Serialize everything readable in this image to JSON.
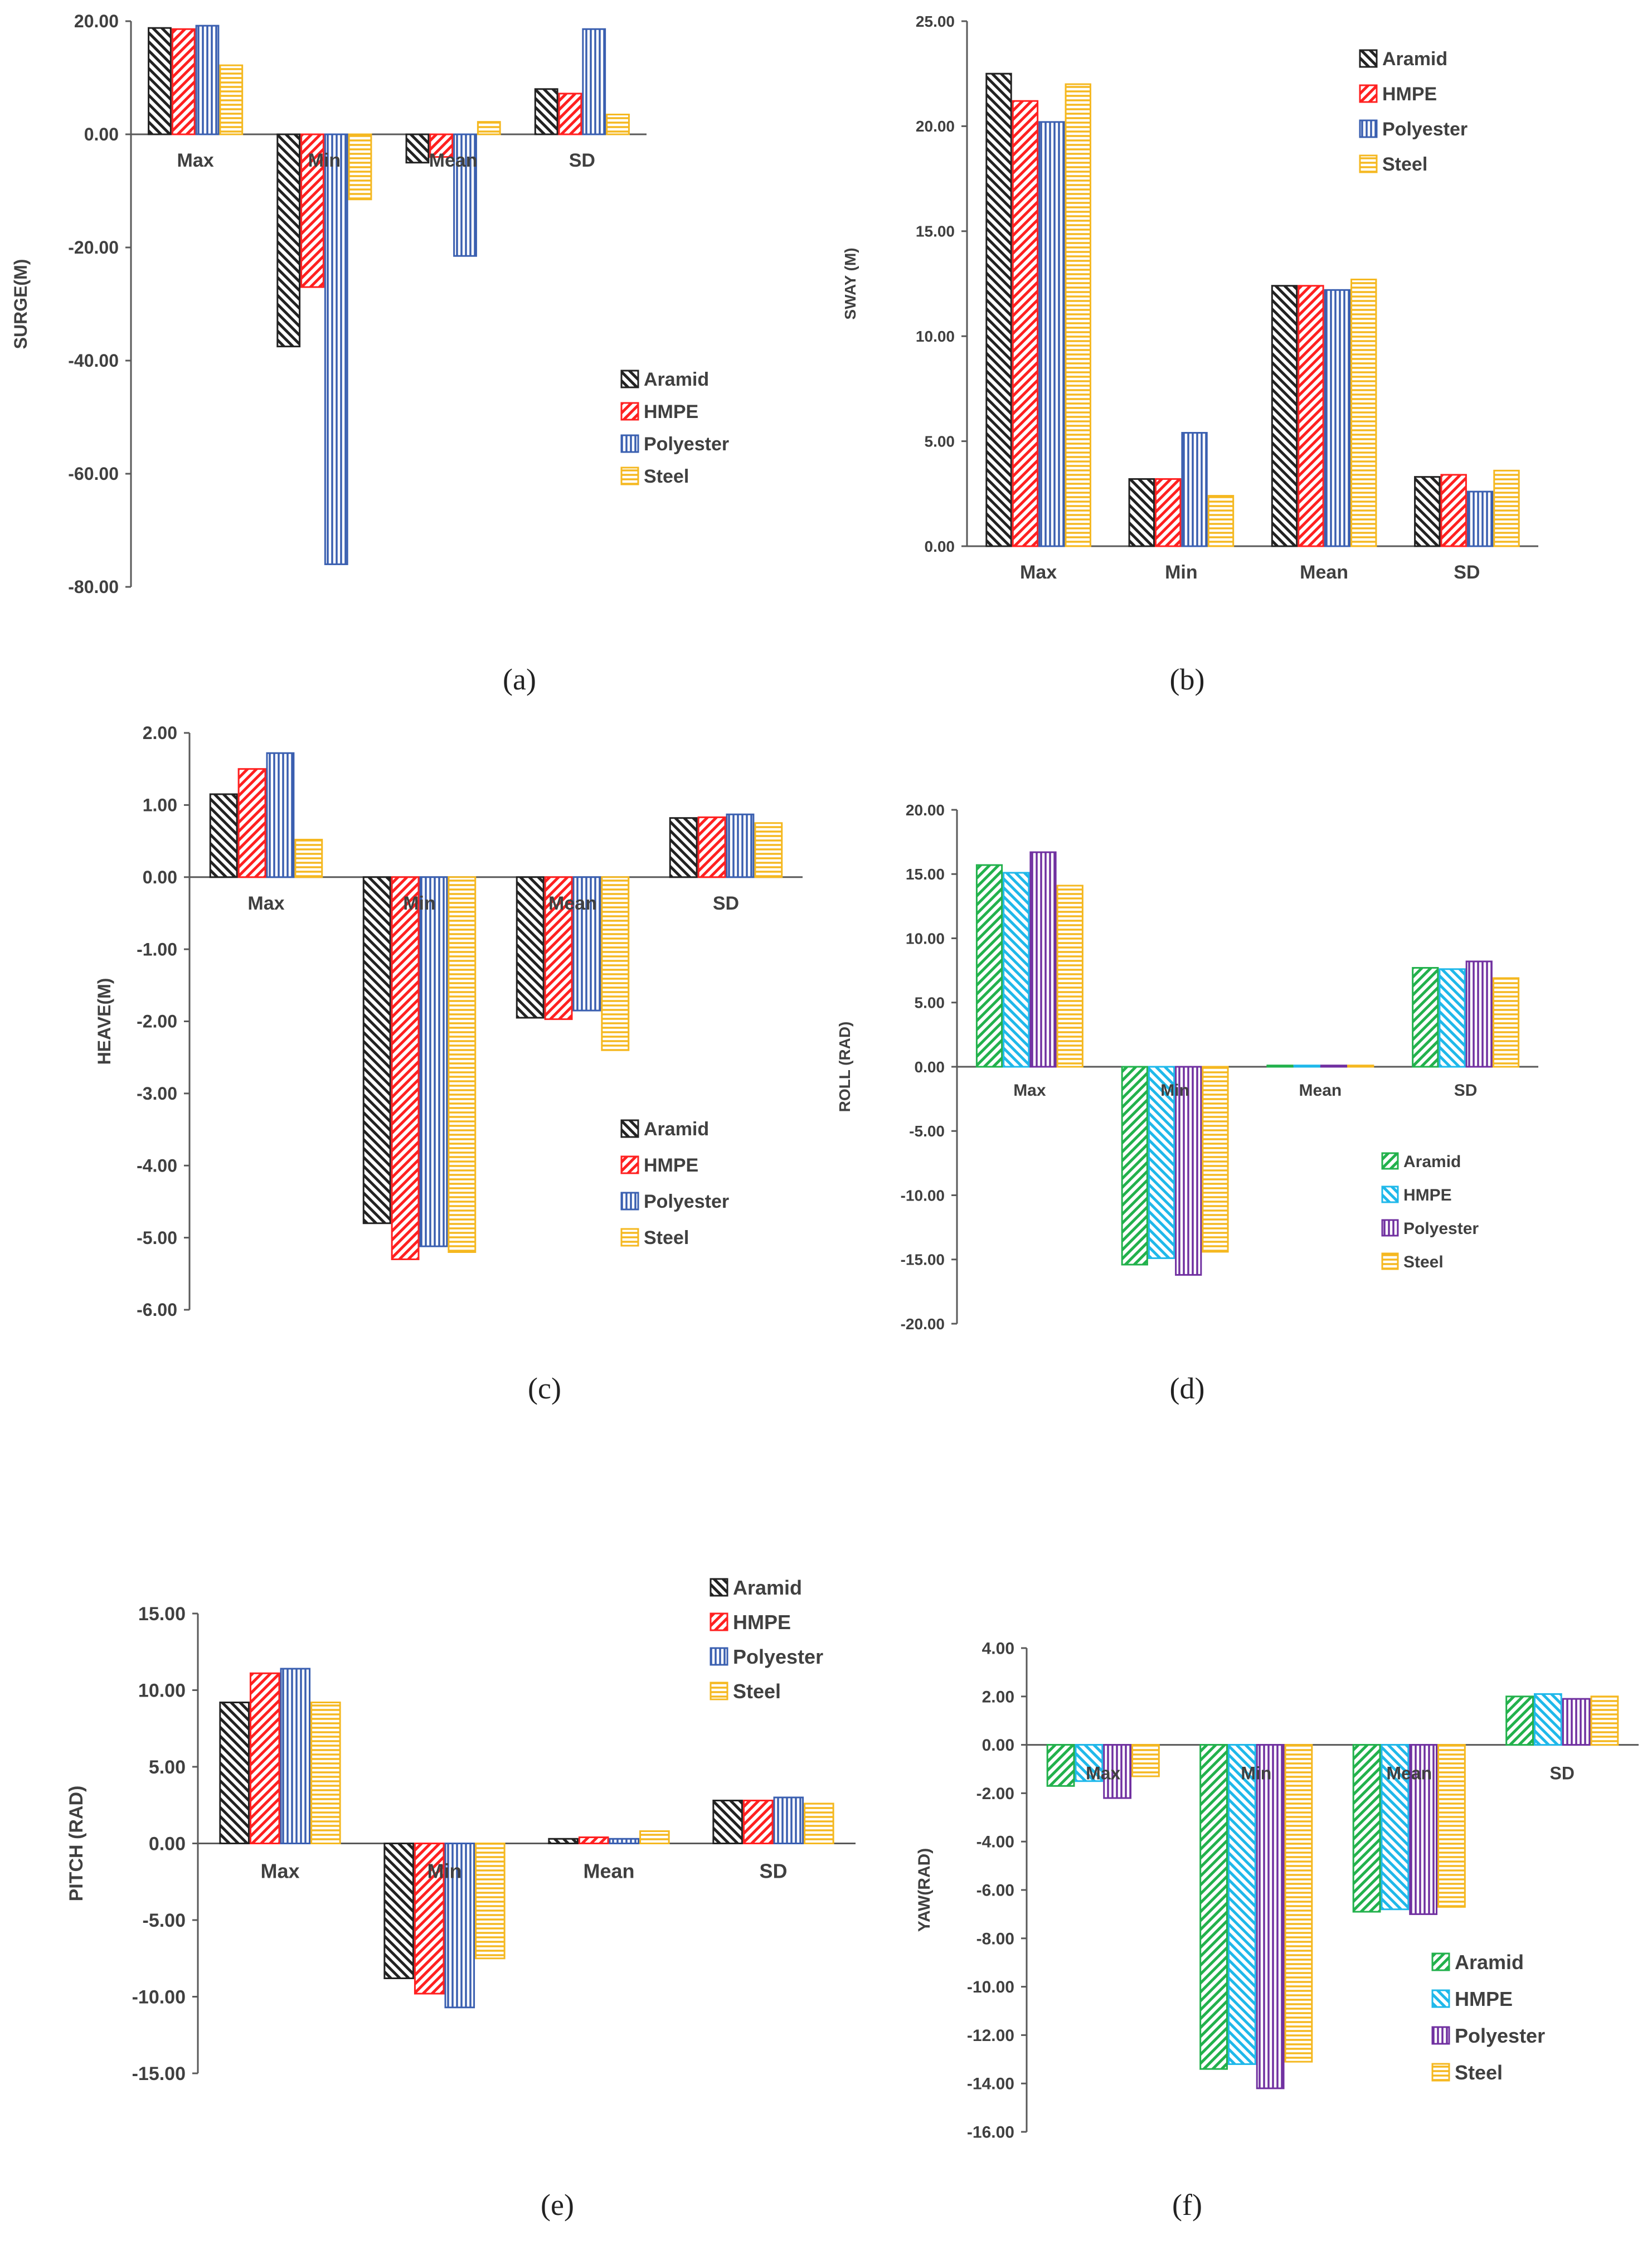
{
  "colors": {
    "scheme_a": {
      "Aramid": "#222222",
      "HMPE": "#ff2020",
      "Polyester": "#3a5fb0",
      "Steel": "#f5b820"
    },
    "scheme_b": {
      "Aramid": "#22b14c",
      "HMPE": "#1fb8ea",
      "Polyester": "#7030a0",
      "Steel": "#f5b820"
    }
  },
  "captions": [
    "(a)",
    "(b)",
    "(c)",
    "(d)",
    "(e)",
    "(f)"
  ],
  "chart_data": [
    {
      "id": "a",
      "type": "bar",
      "ylabel": "SURGE(M)",
      "title": "",
      "xlabel": "",
      "ylim": [
        -80,
        20
      ],
      "yticks": [
        "20.00",
        "0.00",
        "-20.00",
        "-40.00",
        "-60.00",
        "-80.00"
      ],
      "categories": [
        "Max",
        "Min",
        "Mean",
        "SD"
      ],
      "color_scheme": "scheme_a",
      "legend_position": "center-right",
      "grid": false,
      "series": [
        {
          "name": "Aramid",
          "pattern": "diag-back",
          "values": [
            18.8,
            -37.5,
            -5.0,
            8.0
          ]
        },
        {
          "name": "HMPE",
          "pattern": "diag-fwd",
          "values": [
            18.6,
            -27.0,
            -4.0,
            7.2
          ]
        },
        {
          "name": "Polyester",
          "pattern": "vertical",
          "values": [
            19.2,
            -76.0,
            -21.5,
            18.6
          ]
        },
        {
          "name": "Steel",
          "pattern": "horizontal",
          "values": [
            12.2,
            -11.5,
            2.2,
            3.5
          ]
        }
      ]
    },
    {
      "id": "b",
      "type": "bar",
      "ylabel": "SWAY (M)",
      "title": "",
      "xlabel": "",
      "ylim": [
        0,
        25
      ],
      "yticks": [
        "25.00",
        "20.00",
        "15.00",
        "10.00",
        "5.00",
        "0.00"
      ],
      "categories": [
        "Max",
        "Min",
        "Mean",
        "SD"
      ],
      "color_scheme": "scheme_a",
      "legend_position": "top-right",
      "grid": false,
      "series": [
        {
          "name": "Aramid",
          "pattern": "diag-back",
          "values": [
            22.5,
            3.2,
            12.4,
            3.3
          ]
        },
        {
          "name": "HMPE",
          "pattern": "diag-fwd",
          "values": [
            21.2,
            3.2,
            12.4,
            3.4
          ]
        },
        {
          "name": "Polyester",
          "pattern": "vertical",
          "values": [
            20.2,
            5.4,
            12.2,
            2.6
          ]
        },
        {
          "name": "Steel",
          "pattern": "horizontal",
          "values": [
            22.0,
            2.4,
            12.7,
            3.6
          ]
        }
      ]
    },
    {
      "id": "c",
      "type": "bar",
      "ylabel": "HEAVE(M)",
      "title": "",
      "xlabel": "",
      "ylim": [
        -6,
        2
      ],
      "yticks": [
        "2.00",
        "1.00",
        "0.00",
        "-1.00",
        "-2.00",
        "-3.00",
        "-4.00",
        "-5.00",
        "-6.00"
      ],
      "categories": [
        "Max",
        "Min",
        "Mean",
        "SD"
      ],
      "color_scheme": "scheme_a",
      "legend_position": "center-right",
      "grid": false,
      "series": [
        {
          "name": "Aramid",
          "pattern": "diag-back",
          "values": [
            1.15,
            -4.8,
            -1.95,
            0.82
          ]
        },
        {
          "name": "HMPE",
          "pattern": "diag-fwd",
          "values": [
            1.5,
            -5.3,
            -1.97,
            0.83
          ]
        },
        {
          "name": "Polyester",
          "pattern": "vertical",
          "values": [
            1.72,
            -5.12,
            -1.85,
            0.87
          ]
        },
        {
          "name": "Steel",
          "pattern": "horizontal",
          "values": [
            0.52,
            -5.2,
            -2.4,
            0.75
          ]
        }
      ]
    },
    {
      "id": "d",
      "type": "bar",
      "ylabel": "ROLL (RAD)",
      "title": "",
      "xlabel": "",
      "ylim": [
        -20,
        20
      ],
      "yticks": [
        "20.00",
        "15.00",
        "10.00",
        "5.00",
        "0.00",
        "-5.00",
        "-10.00",
        "-15.00",
        "-20.00"
      ],
      "categories": [
        "Max",
        "Min",
        "Mean",
        "SD"
      ],
      "color_scheme": "scheme_b",
      "legend_position": "bottom-right",
      "grid": false,
      "series": [
        {
          "name": "Aramid",
          "pattern": "diag-fwd",
          "values": [
            15.7,
            -15.4,
            0.1,
            7.7
          ]
        },
        {
          "name": "HMPE",
          "pattern": "diag-back",
          "values": [
            15.1,
            -14.9,
            0.1,
            7.6
          ]
        },
        {
          "name": "Polyester",
          "pattern": "vertical",
          "values": [
            16.7,
            -16.2,
            0.1,
            8.2
          ]
        },
        {
          "name": "Steel",
          "pattern": "horizontal",
          "values": [
            14.1,
            -14.4,
            0.1,
            6.9
          ]
        }
      ]
    },
    {
      "id": "e",
      "type": "bar",
      "ylabel": "PITCH (RAD)",
      "title": "",
      "xlabel": "",
      "ylim": [
        -15,
        15
      ],
      "yticks": [
        "15.00",
        "10.00",
        "5.00",
        "0.00",
        "-5.00",
        "-10.00",
        "-15.00"
      ],
      "categories": [
        "Max",
        "Min",
        "Mean",
        "SD"
      ],
      "color_scheme": "scheme_a",
      "legend_position": "top-right",
      "grid": false,
      "series": [
        {
          "name": "Aramid",
          "pattern": "diag-back",
          "values": [
            9.2,
            -8.8,
            0.3,
            2.8
          ]
        },
        {
          "name": "HMPE",
          "pattern": "diag-fwd",
          "values": [
            11.1,
            -9.8,
            0.4,
            2.8
          ]
        },
        {
          "name": "Polyester",
          "pattern": "vertical",
          "values": [
            11.4,
            -10.7,
            0.3,
            3.0
          ]
        },
        {
          "name": "Steel",
          "pattern": "horizontal",
          "values": [
            9.2,
            -7.5,
            0.8,
            2.6
          ]
        }
      ]
    },
    {
      "id": "f",
      "type": "bar",
      "ylabel": "YAW(RAD)",
      "title": "",
      "xlabel": "",
      "ylim": [
        -16,
        4
      ],
      "yticks": [
        "4.00",
        "2.00",
        "0.00",
        "-2.00",
        "-4.00",
        "-6.00",
        "-8.00",
        "-10.00",
        "-12.00",
        "-14.00",
        "-16.00"
      ],
      "categories": [
        "Max",
        "Min",
        "Mean",
        "SD"
      ],
      "color_scheme": "scheme_b",
      "legend_position": "bottom-right",
      "grid": false,
      "series": [
        {
          "name": "Aramid",
          "pattern": "diag-fwd",
          "values": [
            -1.7,
            -13.4,
            -6.9,
            2.0
          ]
        },
        {
          "name": "HMPE",
          "pattern": "diag-back",
          "values": [
            -1.5,
            -13.2,
            -6.8,
            2.1
          ]
        },
        {
          "name": "Polyester",
          "pattern": "vertical",
          "values": [
            -2.2,
            -14.2,
            -7.0,
            1.9
          ]
        },
        {
          "name": "Steel",
          "pattern": "horizontal",
          "values": [
            -1.3,
            -13.1,
            -6.7,
            2.0
          ]
        }
      ]
    }
  ]
}
